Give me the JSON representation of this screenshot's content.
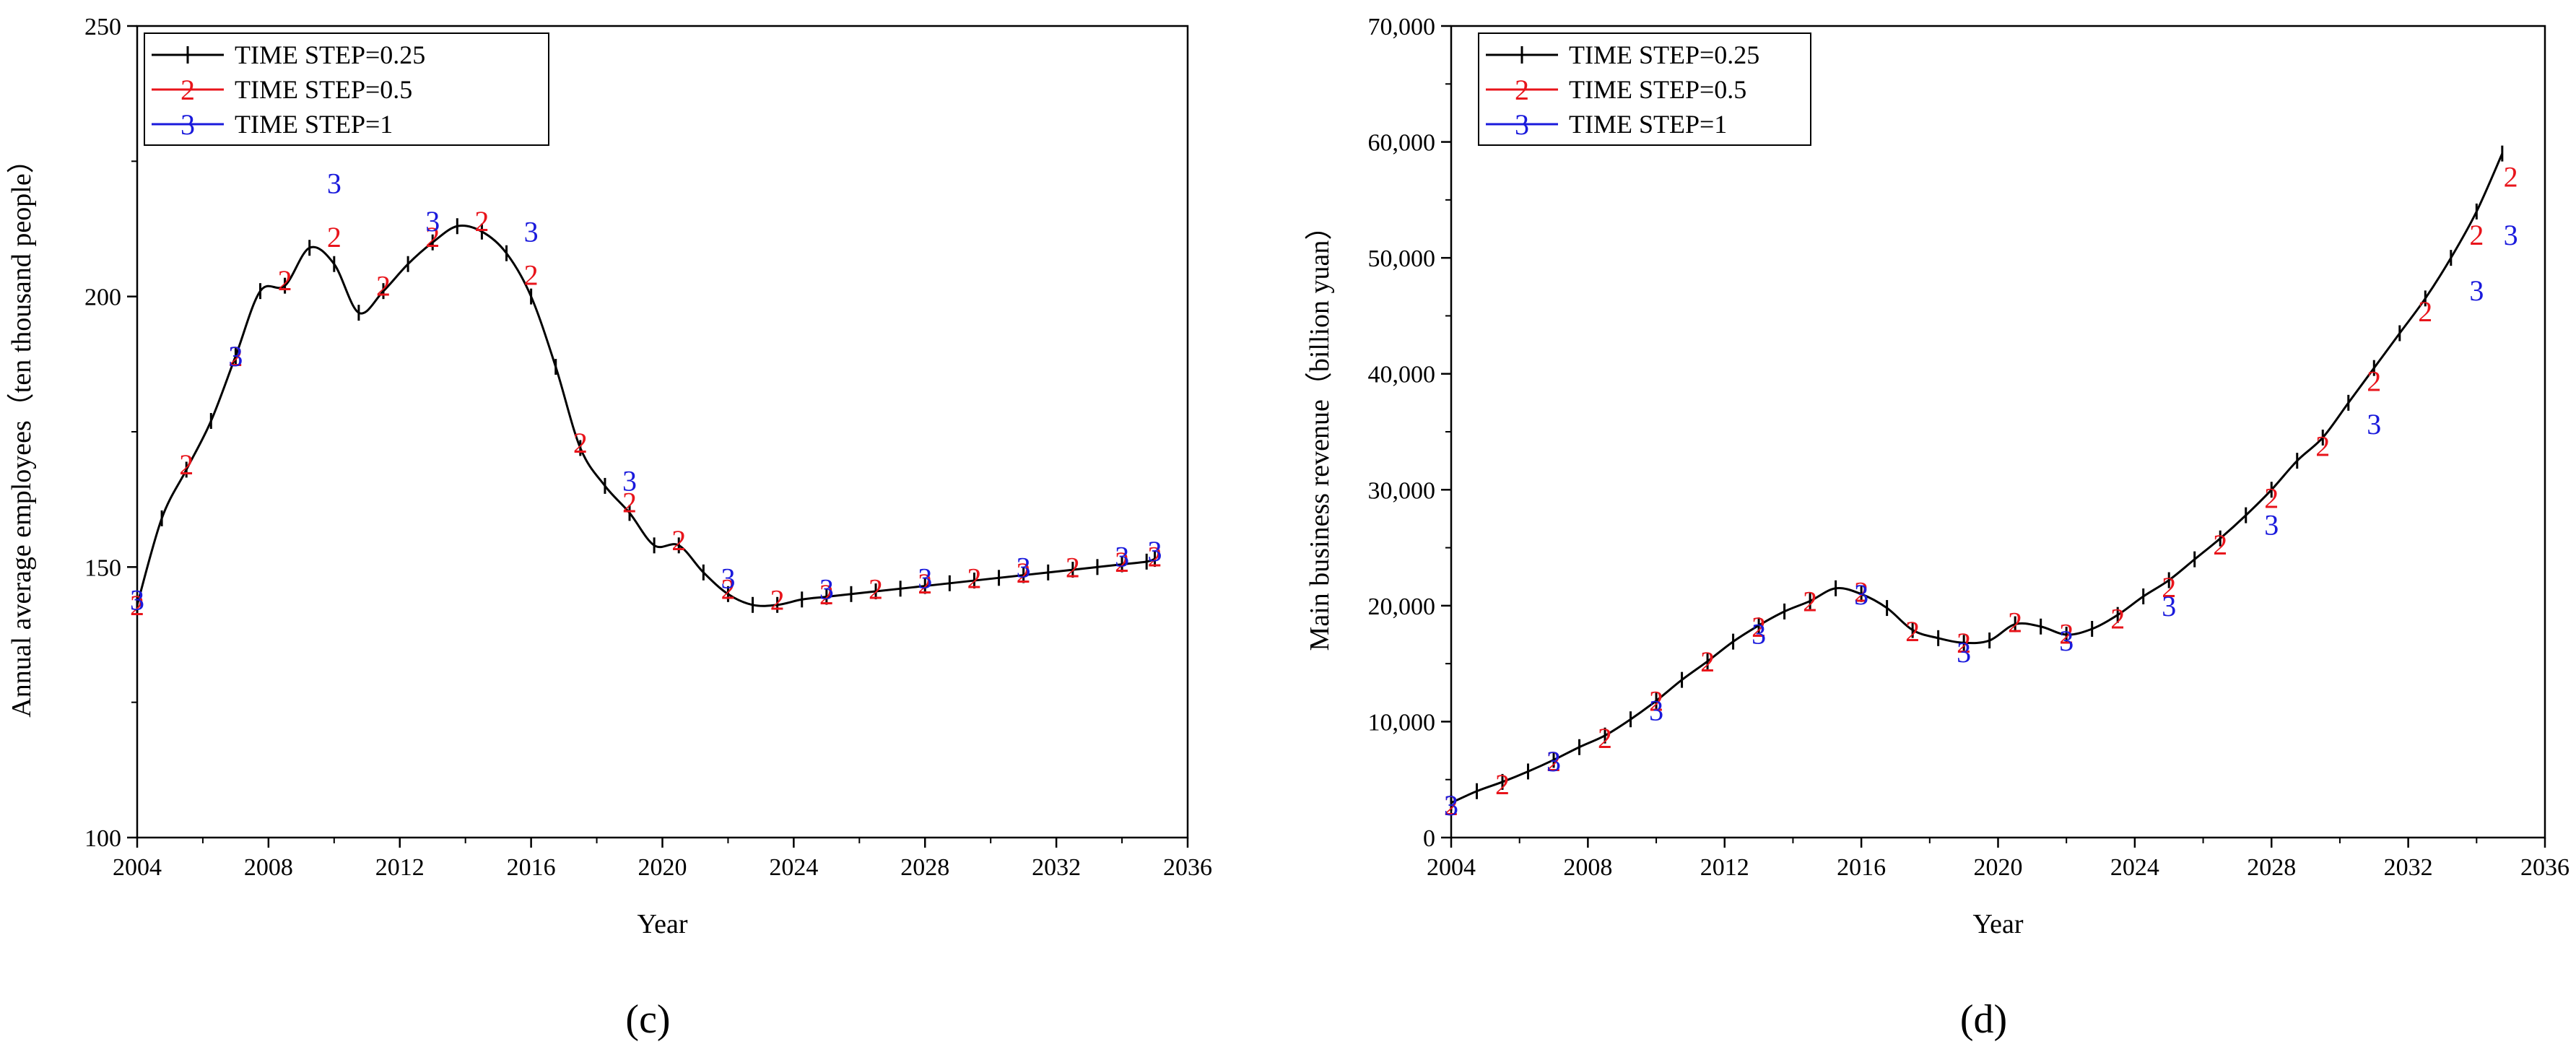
{
  "chart_data": [
    {
      "type": "line",
      "panel_label": "(c)",
      "title": "",
      "xlabel": "Year",
      "ylabel": "Annual average employees（ten thousand people）",
      "xlim": [
        2004,
        2036
      ],
      "ylim": [
        100,
        250
      ],
      "xticks": [
        "2004",
        "2008",
        "2012",
        "2016",
        "2020",
        "2024",
        "2028",
        "2032",
        "2036"
      ],
      "yticks": [
        "100",
        "150",
        "200",
        "250"
      ],
      "legend": {
        "position": "top-left",
        "entries": [
          {
            "label": "TIME STEP=0.25",
            "marker": "",
            "color": "#000000"
          },
          {
            "label": "TIME STEP=0.5",
            "marker": "2",
            "color": "#e8141b"
          },
          {
            "label": "TIME STEP=1",
            "marker": "3",
            "color": "#1a1adc"
          }
        ]
      },
      "series": [
        {
          "name": "TIME STEP=0.25",
          "color": "#000000",
          "style": "line-with-bars",
          "x": [
            2004,
            2004.75,
            2005.5,
            2006.25,
            2007,
            2007.75,
            2008.5,
            2009.25,
            2010,
            2010.75,
            2011.5,
            2012.25,
            2013,
            2013.75,
            2014.5,
            2015.25,
            2016,
            2016.75,
            2017.5,
            2018.25,
            2019,
            2019.75,
            2020.5,
            2021.25,
            2022,
            2022.75,
            2023.5,
            2024.25,
            2025,
            2025.75,
            2026.5,
            2027.25,
            2028,
            2028.75,
            2029.5,
            2030.25,
            2031,
            2031.75,
            2032.5,
            2033.25,
            2034,
            2034.75,
            2035
          ],
          "values": [
            143,
            159,
            168,
            177,
            189,
            201,
            202,
            209,
            206,
            197,
            201,
            206,
            210,
            213,
            212,
            208,
            200,
            187,
            172,
            165,
            160,
            154,
            154,
            149,
            145,
            143,
            143,
            144,
            144.5,
            145,
            145.5,
            146,
            146.5,
            147,
            147.5,
            148,
            148.5,
            149,
            149.5,
            150,
            150.5,
            151,
            151.5
          ]
        },
        {
          "name": "TIME STEP=0.5",
          "color": "#e8141b",
          "marker": "2",
          "x": [
            2004,
            2005.5,
            2007,
            2008.5,
            2010,
            2011.5,
            2013,
            2014.5,
            2016,
            2017.5,
            2019,
            2020.5,
            2022,
            2023.5,
            2025,
            2026.5,
            2028,
            2029.5,
            2031,
            2032.5,
            2034,
            2035
          ],
          "values": [
            143,
            169,
            189,
            203,
            211,
            202,
            211,
            214,
            204,
            173,
            162,
            155,
            146,
            144,
            145,
            146,
            147,
            148,
            149,
            150,
            151,
            152
          ]
        },
        {
          "name": "TIME STEP=1",
          "color": "#1a1adc",
          "marker": "3",
          "x": [
            2004,
            2007,
            2010,
            2013,
            2016,
            2019,
            2022,
            2025,
            2028,
            2031,
            2034,
            2035
          ],
          "values": [
            144,
            189,
            221,
            214,
            212,
            166,
            148,
            146,
            148,
            150,
            152,
            153
          ]
        }
      ]
    },
    {
      "type": "line",
      "panel_label": "(d)",
      "title": "",
      "xlabel": "Year",
      "ylabel": "Main business revenue（billion yuan）",
      "xlim": [
        2004,
        2036
      ],
      "ylim": [
        0,
        70000
      ],
      "xticks": [
        "2004",
        "2008",
        "2012",
        "2016",
        "2020",
        "2024",
        "2028",
        "2032",
        "2036"
      ],
      "yticks": [
        "0",
        "10,000",
        "20,000",
        "30,000",
        "40,000",
        "50,000",
        "60,000",
        "70,000"
      ],
      "legend": {
        "position": "top-left",
        "entries": [
          {
            "label": "TIME STEP=0.25",
            "marker": "",
            "color": "#000000"
          },
          {
            "label": "TIME STEP=0.5",
            "marker": "2",
            "color": "#e8141b"
          },
          {
            "label": "TIME STEP=1",
            "marker": "3",
            "color": "#1a1adc"
          }
        ]
      },
      "series": [
        {
          "name": "TIME STEP=0.25",
          "color": "#000000",
          "style": "line-with-bars",
          "x": [
            2004,
            2004.75,
            2005.5,
            2006.25,
            2007,
            2007.75,
            2008.5,
            2009.25,
            2010,
            2010.75,
            2011.5,
            2012.25,
            2013,
            2013.75,
            2014.5,
            2015.25,
            2016,
            2016.75,
            2017.5,
            2018.25,
            2019,
            2019.75,
            2020.5,
            2021.25,
            2022,
            2022.75,
            2023.5,
            2024.25,
            2025,
            2025.75,
            2026.5,
            2027.25,
            2028,
            2028.75,
            2029.5,
            2030.25,
            2031,
            2031.75,
            2032.5,
            2033.25,
            2034,
            2034.75
          ],
          "values": [
            3000,
            4000,
            4800,
            5700,
            6700,
            7800,
            8800,
            10200,
            11800,
            13600,
            15200,
            16900,
            18300,
            19500,
            20400,
            21500,
            21000,
            19800,
            17900,
            17200,
            16800,
            17000,
            18400,
            18200,
            17500,
            18000,
            19200,
            20800,
            22200,
            24000,
            25800,
            27800,
            30000,
            32500,
            34500,
            37500,
            40500,
            43500,
            46500,
            50000,
            54000,
            59000
          ]
        },
        {
          "name": "TIME STEP=0.5",
          "color": "#e8141b",
          "marker": "2",
          "x": [
            2004,
            2005.5,
            2007,
            2008.5,
            2010,
            2011.5,
            2013,
            2014.5,
            2016,
            2017.5,
            2019,
            2020.5,
            2022,
            2023.5,
            2025,
            2026.5,
            2028,
            2029.5,
            2031,
            2032.5,
            2034,
            2035
          ],
          "values": [
            2800,
            4600,
            6600,
            8600,
            11800,
            15200,
            18200,
            20400,
            21200,
            17800,
            16800,
            18600,
            17600,
            18900,
            21600,
            25300,
            29300,
            33800,
            39400,
            45400,
            52000,
            57000
          ]
        },
        {
          "name": "TIME STEP=1",
          "color": "#1a1adc",
          "marker": "3",
          "x": [
            2004,
            2007,
            2010,
            2013,
            2016,
            2019,
            2022,
            2025,
            2028,
            2031,
            2034,
            2035
          ],
          "values": [
            2800,
            6600,
            11000,
            17600,
            21000,
            16000,
            17000,
            20000,
            27000,
            35700,
            47200,
            52000
          ]
        }
      ]
    }
  ]
}
